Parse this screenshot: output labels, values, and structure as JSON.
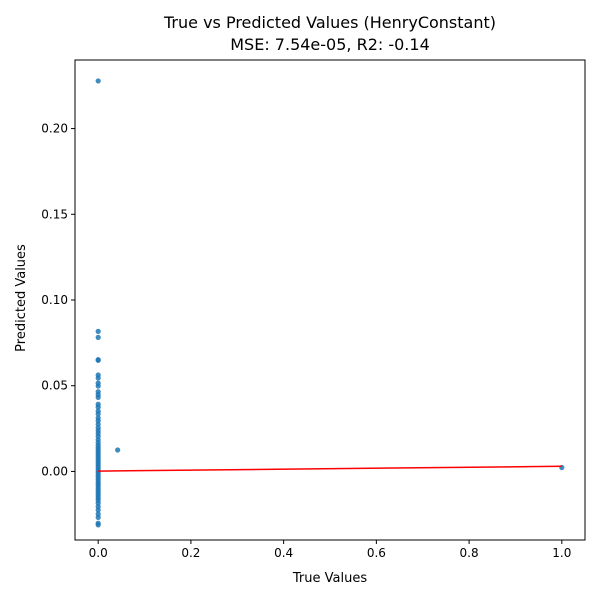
{
  "chart_data": {
    "type": "scatter",
    "title": "True vs Predicted Values (HenryConstant)",
    "subtitle": "MSE: 7.54e-05, R2: -0.14",
    "xlabel": "True Values",
    "ylabel": "Predicted Values",
    "xlim": [
      -0.05,
      1.05
    ],
    "ylim": [
      -0.04,
      0.24
    ],
    "xticks": [
      0.0,
      0.2,
      0.4,
      0.6,
      0.8,
      1.0
    ],
    "xtick_labels": [
      "0.0",
      "0.2",
      "0.4",
      "0.6",
      "0.8",
      "1.0"
    ],
    "yticks": [
      0.0,
      0.05,
      0.1,
      0.15,
      0.2
    ],
    "ytick_labels": [
      "0.00",
      "0.05",
      "0.10",
      "0.15",
      "0.20"
    ],
    "grid": false,
    "point_color": "#1f77b4",
    "line_color": "#ff0000",
    "points": [
      {
        "x": 0.0,
        "y": 0.2278
      },
      {
        "x": 0.0,
        "y": 0.0817
      },
      {
        "x": 0.0,
        "y": 0.0782
      },
      {
        "x": 0.0,
        "y": 0.0652
      },
      {
        "x": 0.0,
        "y": 0.0648
      },
      {
        "x": 0.0,
        "y": 0.0563
      },
      {
        "x": 0.0,
        "y": 0.0545
      },
      {
        "x": 0.0,
        "y": 0.0515
      },
      {
        "x": 0.0,
        "y": 0.0498
      },
      {
        "x": 0.0,
        "y": 0.0465
      },
      {
        "x": 0.0,
        "y": 0.0448
      },
      {
        "x": 0.0,
        "y": 0.0432
      },
      {
        "x": 0.0,
        "y": 0.0392
      },
      {
        "x": 0.0,
        "y": 0.0375
      },
      {
        "x": 0.0,
        "y": 0.0352
      },
      {
        "x": 0.0,
        "y": 0.0335
      },
      {
        "x": 0.0,
        "y": 0.0312
      },
      {
        "x": 0.0,
        "y": 0.0295
      },
      {
        "x": 0.0,
        "y": 0.0275
      },
      {
        "x": 0.0,
        "y": 0.0255
      },
      {
        "x": 0.0,
        "y": 0.0238
      },
      {
        "x": 0.0,
        "y": 0.0222
      },
      {
        "x": 0.0,
        "y": 0.0205
      },
      {
        "x": 0.0,
        "y": 0.0185
      },
      {
        "x": 0.0,
        "y": 0.0168
      },
      {
        "x": 0.0,
        "y": 0.0152
      },
      {
        "x": 0.0,
        "y": 0.0138
      },
      {
        "x": 0.0,
        "y": 0.0125
      },
      {
        "x": 0.0,
        "y": 0.0112
      },
      {
        "x": 0.0,
        "y": 0.0098
      },
      {
        "x": 0.0,
        "y": 0.0085
      },
      {
        "x": 0.0,
        "y": 0.0072
      },
      {
        "x": 0.0,
        "y": 0.0058
      },
      {
        "x": 0.0,
        "y": 0.0045
      },
      {
        "x": 0.0,
        "y": 0.0032
      },
      {
        "x": 0.0,
        "y": 0.0018
      },
      {
        "x": 0.0,
        "y": 0.0005
      },
      {
        "x": 0.0,
        "y": -0.0008
      },
      {
        "x": 0.0,
        "y": -0.0022
      },
      {
        "x": 0.0,
        "y": -0.0035
      },
      {
        "x": 0.0,
        "y": -0.0048
      },
      {
        "x": 0.0,
        "y": -0.0062
      },
      {
        "x": 0.0,
        "y": -0.0075
      },
      {
        "x": 0.0,
        "y": -0.0088
      },
      {
        "x": 0.0,
        "y": -0.0102
      },
      {
        "x": 0.0,
        "y": -0.0115
      },
      {
        "x": 0.0,
        "y": -0.0128
      },
      {
        "x": 0.0,
        "y": -0.0142
      },
      {
        "x": 0.0,
        "y": -0.0155
      },
      {
        "x": 0.0,
        "y": -0.0168
      },
      {
        "x": 0.0,
        "y": -0.0185
      },
      {
        "x": 0.0,
        "y": -0.0205
      },
      {
        "x": 0.0,
        "y": -0.0225
      },
      {
        "x": 0.0,
        "y": -0.0248
      },
      {
        "x": 0.0,
        "y": -0.0268
      },
      {
        "x": 0.0,
        "y": -0.0302
      },
      {
        "x": 0.0,
        "y": -0.0312
      },
      {
        "x": 0.042,
        "y": 0.0125
      },
      {
        "x": 1.0,
        "y": 0.0023
      }
    ],
    "regression_line": {
      "x": [
        0.0,
        1.0
      ],
      "y": [
        0.0002,
        0.003
      ]
    }
  }
}
